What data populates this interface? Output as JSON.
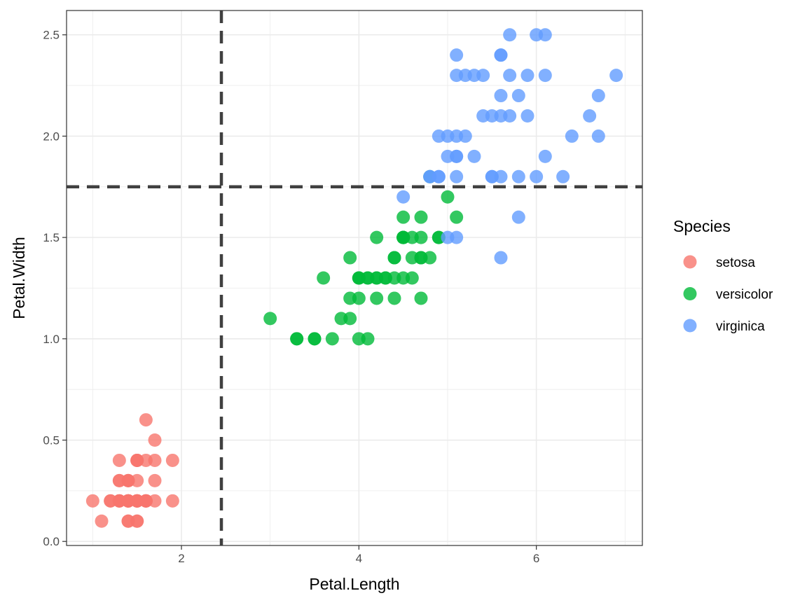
{
  "chart_data": {
    "type": "scatter",
    "title": "",
    "xlabel": "Petal.Length",
    "ylabel": "Petal.Width",
    "xlim": [
      0.705,
      7.195
    ],
    "ylim": [
      -0.02,
      2.62
    ],
    "x_ticks": [
      2,
      4,
      6
    ],
    "x_tick_labels": [
      "2",
      "4",
      "6"
    ],
    "y_ticks": [
      0.0,
      0.5,
      1.0,
      1.5,
      2.0,
      2.5
    ],
    "y_tick_labels": [
      "0.0",
      "0.5",
      "1.0",
      "1.5",
      "2.0",
      "2.5"
    ],
    "grid": true,
    "point_alpha": 0.8,
    "reference_lines": [
      {
        "orientation": "vertical",
        "value": 2.45,
        "style": "dashed",
        "color": "#404040"
      },
      {
        "orientation": "horizontal",
        "value": 1.75,
        "style": "dashed",
        "color": "#404040"
      }
    ],
    "legend": {
      "title": "Species",
      "position": "right"
    },
    "series": [
      {
        "name": "setosa",
        "color": "#F8766D",
        "points": [
          [
            1.4,
            0.2
          ],
          [
            1.4,
            0.2
          ],
          [
            1.3,
            0.2
          ],
          [
            1.5,
            0.2
          ],
          [
            1.4,
            0.2
          ],
          [
            1.7,
            0.4
          ],
          [
            1.4,
            0.3
          ],
          [
            1.5,
            0.2
          ],
          [
            1.4,
            0.2
          ],
          [
            1.5,
            0.1
          ],
          [
            1.5,
            0.2
          ],
          [
            1.6,
            0.2
          ],
          [
            1.4,
            0.1
          ],
          [
            1.1,
            0.1
          ],
          [
            1.2,
            0.2
          ],
          [
            1.5,
            0.4
          ],
          [
            1.3,
            0.4
          ],
          [
            1.4,
            0.3
          ],
          [
            1.7,
            0.3
          ],
          [
            1.5,
            0.3
          ],
          [
            1.7,
            0.2
          ],
          [
            1.5,
            0.4
          ],
          [
            1.0,
            0.2
          ],
          [
            1.7,
            0.5
          ],
          [
            1.9,
            0.2
          ],
          [
            1.6,
            0.2
          ],
          [
            1.6,
            0.4
          ],
          [
            1.5,
            0.2
          ],
          [
            1.4,
            0.2
          ],
          [
            1.6,
            0.2
          ],
          [
            1.6,
            0.2
          ],
          [
            1.5,
            0.4
          ],
          [
            1.5,
            0.1
          ],
          [
            1.4,
            0.2
          ],
          [
            1.5,
            0.2
          ],
          [
            1.2,
            0.2
          ],
          [
            1.3,
            0.2
          ],
          [
            1.4,
            0.1
          ],
          [
            1.3,
            0.2
          ],
          [
            1.5,
            0.2
          ],
          [
            1.3,
            0.3
          ],
          [
            1.3,
            0.3
          ],
          [
            1.3,
            0.2
          ],
          [
            1.6,
            0.6
          ],
          [
            1.9,
            0.4
          ],
          [
            1.4,
            0.3
          ],
          [
            1.6,
            0.2
          ],
          [
            1.4,
            0.2
          ],
          [
            1.5,
            0.2
          ],
          [
            1.4,
            0.2
          ]
        ]
      },
      {
        "name": "versicolor",
        "color": "#00BA38",
        "points": [
          [
            4.7,
            1.4
          ],
          [
            4.5,
            1.5
          ],
          [
            4.9,
            1.5
          ],
          [
            4.0,
            1.3
          ],
          [
            4.6,
            1.5
          ],
          [
            4.5,
            1.3
          ],
          [
            4.7,
            1.6
          ],
          [
            3.3,
            1.0
          ],
          [
            4.6,
            1.3
          ],
          [
            3.9,
            1.4
          ],
          [
            3.5,
            1.0
          ],
          [
            4.2,
            1.5
          ],
          [
            4.0,
            1.0
          ],
          [
            4.7,
            1.4
          ],
          [
            3.6,
            1.3
          ],
          [
            4.4,
            1.4
          ],
          [
            4.5,
            1.5
          ],
          [
            4.1,
            1.0
          ],
          [
            4.5,
            1.5
          ],
          [
            3.9,
            1.1
          ],
          [
            4.8,
            1.8
          ],
          [
            4.0,
            1.3
          ],
          [
            4.9,
            1.5
          ],
          [
            4.7,
            1.2
          ],
          [
            4.3,
            1.3
          ],
          [
            4.4,
            1.4
          ],
          [
            4.8,
            1.4
          ],
          [
            5.0,
            1.7
          ],
          [
            4.5,
            1.5
          ],
          [
            3.5,
            1.0
          ],
          [
            3.8,
            1.1
          ],
          [
            3.7,
            1.0
          ],
          [
            3.9,
            1.2
          ],
          [
            5.1,
            1.6
          ],
          [
            4.5,
            1.5
          ],
          [
            4.5,
            1.6
          ],
          [
            4.7,
            1.5
          ],
          [
            4.4,
            1.3
          ],
          [
            4.1,
            1.3
          ],
          [
            4.0,
            1.3
          ],
          [
            4.4,
            1.2
          ],
          [
            4.6,
            1.4
          ],
          [
            4.0,
            1.2
          ],
          [
            3.3,
            1.0
          ],
          [
            4.2,
            1.3
          ],
          [
            4.2,
            1.2
          ],
          [
            4.2,
            1.3
          ],
          [
            4.3,
            1.3
          ],
          [
            3.0,
            1.1
          ],
          [
            4.1,
            1.3
          ]
        ]
      },
      {
        "name": "virginica",
        "color": "#619CFF",
        "points": [
          [
            6.0,
            2.5
          ],
          [
            5.1,
            1.9
          ],
          [
            5.9,
            2.1
          ],
          [
            5.6,
            1.8
          ],
          [
            5.8,
            2.2
          ],
          [
            6.6,
            2.1
          ],
          [
            4.5,
            1.7
          ],
          [
            6.3,
            1.8
          ],
          [
            5.8,
            1.8
          ],
          [
            6.1,
            2.5
          ],
          [
            5.1,
            2.0
          ],
          [
            5.3,
            1.9
          ],
          [
            5.5,
            2.1
          ],
          [
            5.0,
            2.0
          ],
          [
            5.1,
            2.4
          ],
          [
            5.3,
            2.3
          ],
          [
            5.5,
            1.8
          ],
          [
            6.7,
            2.2
          ],
          [
            6.9,
            2.3
          ],
          [
            5.0,
            1.5
          ],
          [
            5.7,
            2.3
          ],
          [
            4.9,
            2.0
          ],
          [
            6.7,
            2.0
          ],
          [
            4.9,
            1.8
          ],
          [
            5.7,
            2.1
          ],
          [
            6.0,
            1.8
          ],
          [
            4.8,
            1.8
          ],
          [
            4.9,
            1.8
          ],
          [
            5.6,
            2.1
          ],
          [
            5.8,
            1.6
          ],
          [
            6.1,
            1.9
          ],
          [
            6.4,
            2.0
          ],
          [
            5.6,
            2.2
          ],
          [
            5.1,
            1.5
          ],
          [
            5.6,
            1.4
          ],
          [
            6.1,
            2.3
          ],
          [
            5.6,
            2.4
          ],
          [
            5.5,
            1.8
          ],
          [
            4.8,
            1.8
          ],
          [
            5.4,
            2.1
          ],
          [
            5.6,
            2.4
          ],
          [
            5.1,
            2.3
          ],
          [
            5.1,
            1.9
          ],
          [
            5.9,
            2.3
          ],
          [
            5.7,
            2.5
          ],
          [
            5.2,
            2.3
          ],
          [
            5.0,
            1.9
          ],
          [
            5.2,
            2.0
          ],
          [
            5.4,
            2.3
          ],
          [
            5.1,
            1.8
          ]
        ]
      }
    ]
  }
}
